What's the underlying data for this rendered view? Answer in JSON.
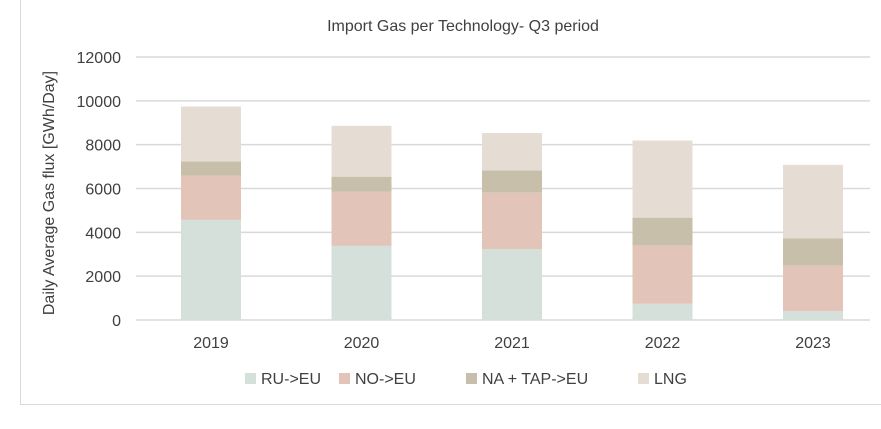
{
  "chart_data": {
    "type": "bar",
    "stacked": true,
    "title": "Import Gas per Technology- Q3 period",
    "xlabel": "",
    "ylabel": "Daily Average Gas flux [GWh/Day]",
    "ylim": [
      0,
      12000
    ],
    "yticks": [
      0,
      2000,
      4000,
      6000,
      8000,
      10000,
      12000
    ],
    "grid": true,
    "legend_position": "bottom",
    "categories": [
      "2019",
      "2020",
      "2021",
      "2022",
      "2023"
    ],
    "series": [
      {
        "name": "RU->EU",
        "color": "#d5e0db",
        "values": [
          4570,
          3380,
          3240,
          740,
          400
        ]
      },
      {
        "name": "NO->EU",
        "color": "#e2c5b8",
        "values": [
          2020,
          2480,
          2570,
          2650,
          2080
        ]
      },
      {
        "name": "NA + TAP->EU",
        "color": "#c8bfab",
        "values": [
          640,
          680,
          1010,
          1280,
          1250
        ]
      },
      {
        "name": "LNG",
        "color": "#e5ddd3",
        "values": [
          2510,
          2320,
          1710,
          3520,
          3350
        ]
      }
    ]
  }
}
